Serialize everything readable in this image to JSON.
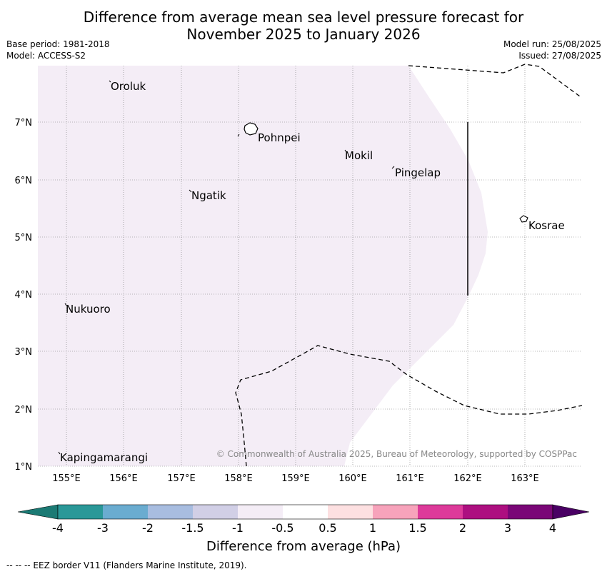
{
  "title": {
    "line1": "Difference from average mean sea level pressure forecast for",
    "line2": "November 2025 to January 2026"
  },
  "meta_left": {
    "base_period": "Base period: 1981-2018",
    "model": "Model: ACCESS-S2"
  },
  "meta_right": {
    "model_run": "Model run: 25/08/2025",
    "issued": "Issued: 27/08/2025"
  },
  "map": {
    "lon_labels": [
      "155°E",
      "156°E",
      "157°E",
      "158°E",
      "159°E",
      "160°E",
      "161°E",
      "162°E",
      "163°E"
    ],
    "lat_labels": [
      "7°N",
      "6°N",
      "5°N",
      "4°N",
      "3°N",
      "2°N",
      "1°N"
    ],
    "places": [
      "Oroluk",
      "Pohnpei",
      "Mokil",
      "Pingelap",
      "Ngatik",
      "Kosrae",
      "Nukuoro",
      "Kapingamarangi"
    ],
    "copyright": "© Commonwealth of Australia 2025, Bureau of Meteorology, supported by COSPPac",
    "shaded_category": "-1 to -0.5",
    "shade_color": "#f4edf6"
  },
  "colorbar": {
    "labels": [
      "-4",
      "-3",
      "-2",
      "-1.5",
      "-1",
      "-0.5",
      "0.5",
      "1",
      "1.5",
      "2",
      "3",
      "4"
    ],
    "colors": [
      "#1b7a74",
      "#2a9898",
      "#6aacd0",
      "#a8bde0",
      "#d1cfe6",
      "#f4edf6",
      "#ffffff",
      "#fde0e1",
      "#f7a3bb",
      "#dd3a9a",
      "#ad0f80",
      "#7a0777",
      "#4a0064"
    ],
    "title": "Difference from average (hPa)"
  },
  "footnote": "--  --  -- EEZ border V11 (Flanders Marine Institute, 2019)."
}
